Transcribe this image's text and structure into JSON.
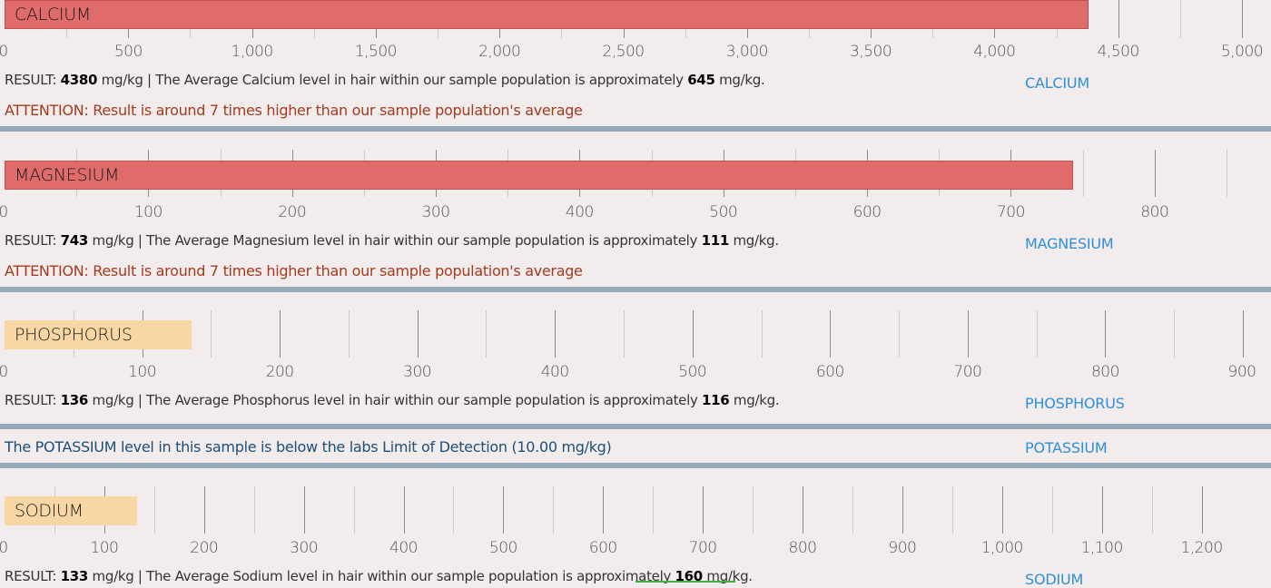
{
  "colors": {
    "high_bar": "#e06b6b",
    "normal_bar": "#f8d7a4",
    "attention_text": "#a33b1f",
    "link_text": "#2f8fd8",
    "divider": "#96a9bb",
    "background": "#f2ecec"
  },
  "minerals": [
    {
      "id": "calcium",
      "name": "CALCIUM",
      "link": "CALCIUM",
      "value": 4380,
      "average": 645,
      "unit": "mg/kg",
      "status": "high",
      "axis_max": 5000,
      "major_step": 500,
      "tick_labels": [
        "0",
        "500",
        "1,000",
        "1,500",
        "2,000",
        "2,500",
        "3,000",
        "3,500",
        "4,000",
        "4,500",
        "5,000"
      ],
      "result_prefix": "RESULT:",
      "result_value": "4380",
      "result_mid": "mg/kg | The Average Calcium level in hair within our sample population is approximately",
      "result_avg": "645",
      "result_suffix": "mg/kg.",
      "attention": "ATTENTION: Result is around 7 times higher than our sample population's average"
    },
    {
      "id": "magnesium",
      "name": "MAGNESIUM",
      "link": "MAGNESIUM",
      "value": 743,
      "average": 111,
      "unit": "mg/kg",
      "status": "high",
      "axis_max": 850,
      "major_step": 100,
      "tick_labels": [
        "0",
        "100",
        "200",
        "300",
        "400",
        "500",
        "600",
        "700",
        "800"
      ],
      "result_prefix": "RESULT:",
      "result_value": "743",
      "result_mid": "mg/kg | The Average Magnesium level in hair within our sample population is approximately",
      "result_avg": "111",
      "result_suffix": "mg/kg.",
      "attention": "ATTENTION: Result is around 7 times higher than our sample population's average"
    },
    {
      "id": "phosphorus",
      "name": "PHOSPHORUS",
      "link": "PHOSPHORUS",
      "value": 136,
      "average": 116,
      "unit": "mg/kg",
      "status": "normal",
      "axis_max": 900,
      "major_step": 100,
      "tick_labels": [
        "0",
        "100",
        "200",
        "300",
        "400",
        "500",
        "600",
        "700",
        "800",
        "900"
      ],
      "result_prefix": "RESULT:",
      "result_value": "136",
      "result_mid": "mg/kg | The Average Phosphorus level in hair within our sample population is approximately",
      "result_avg": "116",
      "result_suffix": "mg/kg."
    },
    {
      "id": "sodium",
      "name": "SODIUM",
      "link": "SODIUM",
      "value": 133,
      "average": 160,
      "unit": "mg/kg",
      "status": "normal",
      "axis_max": 1245,
      "major_step": 100,
      "tick_labels": [
        "0",
        "100",
        "200",
        "300",
        "400",
        "500",
        "600",
        "700",
        "800",
        "900",
        "1,000",
        "1,100",
        "1,200"
      ],
      "result_prefix": "RESULT:",
      "result_value": "133",
      "result_mid": "mg/kg | The Average Sodium level in hair within our sample population is approximately",
      "result_avg": "160",
      "result_suffix": "mg/kg."
    }
  ],
  "potassium": {
    "message": "The POTASSIUM level in this sample is below the labs Limit of Detection (10.00 mg/kg)",
    "link": "POTASSIUM"
  }
}
